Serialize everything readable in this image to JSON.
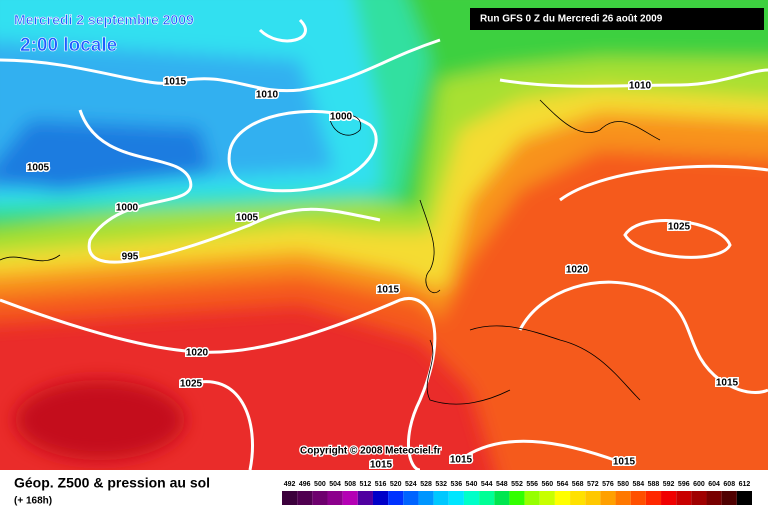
{
  "header": {
    "date": "Mercredi 2 septembre 2009",
    "time": "2:00 locale",
    "run": "Run GFS 0 Z du Mercredi 26 août 2009"
  },
  "map": {
    "isobar_labels": [
      1015,
      1010,
      1000,
      1005,
      1000,
      1005,
      995,
      1015,
      1020,
      1025,
      1020,
      1025,
      1015,
      1015,
      1015,
      1015,
      1010
    ],
    "copyright": "Copyright © 2008 Meteociel.fr"
  },
  "footer": {
    "title": "Géop. Z500 & pression au sol",
    "lead": "(+ 168h)",
    "scale": [
      {
        "label": 492,
        "color": "#3c003c"
      },
      {
        "label": 496,
        "color": "#500050"
      },
      {
        "label": 500,
        "color": "#6e006e"
      },
      {
        "label": 504,
        "color": "#8c008c"
      },
      {
        "label": 508,
        "color": "#b400b4"
      },
      {
        "label": 512,
        "color": "#5000a0"
      },
      {
        "label": 516,
        "color": "#0000c8"
      },
      {
        "label": 520,
        "color": "#0032ff"
      },
      {
        "label": 524,
        "color": "#0064ff"
      },
      {
        "label": 528,
        "color": "#0096ff"
      },
      {
        "label": 532,
        "color": "#00c8ff"
      },
      {
        "label": 536,
        "color": "#00e6ff"
      },
      {
        "label": 540,
        "color": "#00ffc8"
      },
      {
        "label": 544,
        "color": "#00ff96"
      },
      {
        "label": 548,
        "color": "#00e650"
      },
      {
        "label": 552,
        "color": "#32ff00"
      },
      {
        "label": 556,
        "color": "#96ff00"
      },
      {
        "label": 560,
        "color": "#c8ff00"
      },
      {
        "label": 564,
        "color": "#ffff00"
      },
      {
        "label": 568,
        "color": "#ffe100"
      },
      {
        "label": 572,
        "color": "#ffc800"
      },
      {
        "label": 576,
        "color": "#ffa000"
      },
      {
        "label": 580,
        "color": "#ff7800"
      },
      {
        "label": 584,
        "color": "#ff5000"
      },
      {
        "label": 588,
        "color": "#ff2800"
      },
      {
        "label": 592,
        "color": "#f00000"
      },
      {
        "label": 596,
        "color": "#c80000"
      },
      {
        "label": 600,
        "color": "#a00000"
      },
      {
        "label": 604,
        "color": "#780000"
      },
      {
        "label": 608,
        "color": "#500000"
      },
      {
        "label": 612,
        "color": "#000000"
      }
    ]
  }
}
